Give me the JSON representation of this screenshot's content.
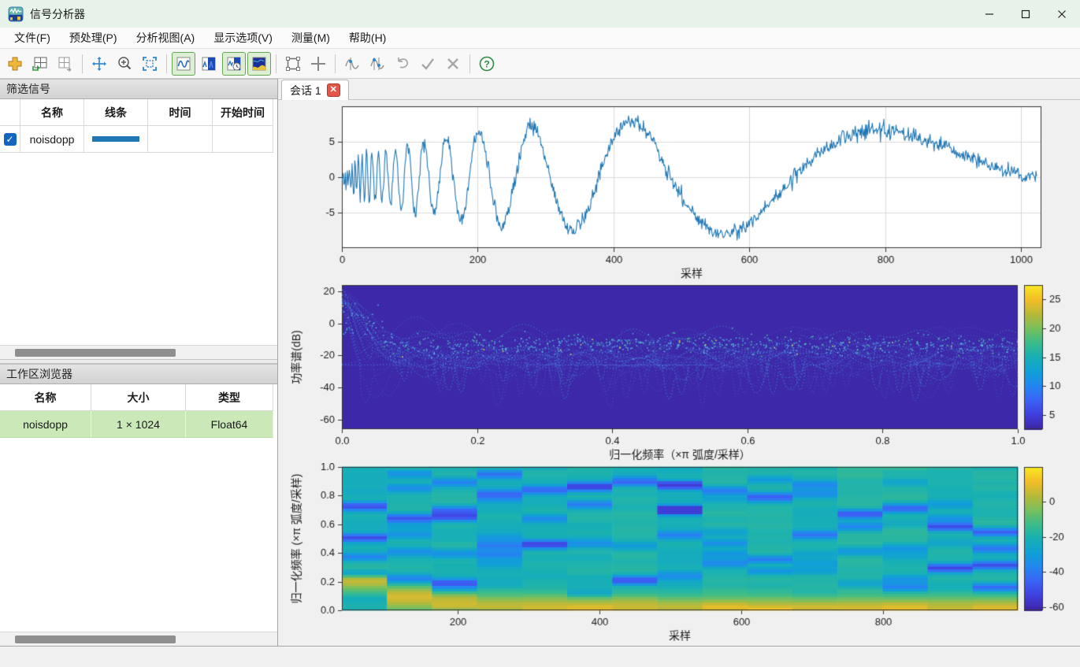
{
  "window": {
    "title": "信号分析器"
  },
  "menu": {
    "items": [
      {
        "label": "文件(F)"
      },
      {
        "label": "预处理(P)"
      },
      {
        "label": "分析视图(A)"
      },
      {
        "label": "显示选项(V)"
      },
      {
        "label": "测量(M)"
      },
      {
        "label": "帮助(H)"
      }
    ]
  },
  "toolbar": {
    "icons": [
      {
        "name": "add-signal",
        "state": "normal"
      },
      {
        "name": "add-display-grid",
        "state": "normal"
      },
      {
        "name": "grid-layout",
        "state": "disabled"
      },
      {
        "name": "pan",
        "state": "normal"
      },
      {
        "name": "zoom-in",
        "state": "normal"
      },
      {
        "name": "fit-to-view",
        "state": "normal"
      },
      {
        "name": "time-view-toggle",
        "state": "active"
      },
      {
        "name": "spectrum-view-toggle",
        "state": "normal"
      },
      {
        "name": "time-spectrum-view-toggle",
        "state": "active"
      },
      {
        "name": "spectrogram-view-toggle",
        "state": "active"
      },
      {
        "name": "zoom-select",
        "state": "normal"
      },
      {
        "name": "crosshair",
        "state": "normal"
      },
      {
        "name": "data-cursor-single",
        "state": "normal"
      },
      {
        "name": "data-cursor-dual",
        "state": "normal"
      },
      {
        "name": "undo",
        "state": "disabled"
      },
      {
        "name": "accept",
        "state": "disabled"
      },
      {
        "name": "cancel",
        "state": "disabled"
      },
      {
        "name": "help",
        "state": "normal"
      }
    ]
  },
  "left_panel": {
    "filter_signals": {
      "title": "筛选信号",
      "columns": [
        "名称",
        "线条",
        "时间",
        "开始时间"
      ],
      "rows": [
        {
          "checked": true,
          "name": "noisdopp",
          "line_color": "#1f77b4",
          "time": "",
          "start_time": ""
        }
      ]
    },
    "workspace_browser": {
      "title": "工作区浏览器",
      "columns": [
        "名称",
        "大小",
        "类型"
      ],
      "rows": [
        {
          "name": "noisdopp",
          "size": "1 × 1024",
          "type": "Float64",
          "highlight": "#cbe9b8"
        }
      ]
    }
  },
  "session_tab": {
    "label": "会话 1"
  },
  "chart_data": [
    {
      "type": "line",
      "name": "time-domain-plot",
      "signal": "noisdopp",
      "description": "Noisy Doppler test signal, 1024 samples: 16*sqrt(t(1-t))*sin(2*pi*1.05/(t+0.05)) + gaussian noise (sigma 0.55)",
      "xlabel": "采样",
      "xlim": [
        0,
        1030
      ],
      "xticks": [
        0,
        200,
        400,
        600,
        800,
        1000
      ],
      "ylim": [
        -10,
        10
      ],
      "yticks": [
        5,
        0,
        -5
      ],
      "line_color": "#1f77b4",
      "plot_bg": "#ffffff",
      "grid": true
    },
    {
      "type": "line",
      "name": "persistence-spectrum-plot",
      "ylabel": "功率谱(dB)",
      "xlabel": "归一化频率（×π 弧度/采样）",
      "xlim": [
        0,
        1
      ],
      "xticks": [
        "0.0",
        "0.2",
        "0.4",
        "0.6",
        "0.8",
        "1.0"
      ],
      "ylim": [
        -66,
        24
      ],
      "yticks": [
        20,
        0,
        -20,
        -40,
        -60
      ],
      "plot_bg": "#3c28a8",
      "grid": false,
      "colorbar": {
        "ticks": [
          25,
          20,
          15,
          10,
          5
        ],
        "range": [
          2.5,
          27.5
        ],
        "colormap": "parula"
      }
    },
    {
      "type": "heatmap",
      "name": "spectrogram-plot",
      "ylabel": "归一化频率 (×π 弧度/采样)",
      "xlabel": "采样",
      "xlim": [
        36,
        990
      ],
      "xticks": [
        200,
        400,
        600,
        800
      ],
      "ylim": [
        0,
        1
      ],
      "yticks": [
        "0.0",
        "0.2",
        "0.4",
        "0.6",
        "0.8",
        "1.0"
      ],
      "time_bins": 15,
      "freq_bins": 52,
      "grid": false,
      "colorbar": {
        "ticks": [
          0,
          -20,
          -40,
          -60
        ],
        "range": [
          -62,
          20
        ],
        "colormap": "parula"
      }
    }
  ],
  "colors": {
    "titlebar_bg": "#e7f3e9",
    "accent_blue": "#1f77b4",
    "toggle_active_bg": "#dcefd4",
    "toggle_active_border": "#62a653",
    "row_highlight_green": "#cbe9b8",
    "checkbox_blue": "#1266c0",
    "persistence_bg": "#3c28a8",
    "close_tab_red": "#e2574a"
  }
}
